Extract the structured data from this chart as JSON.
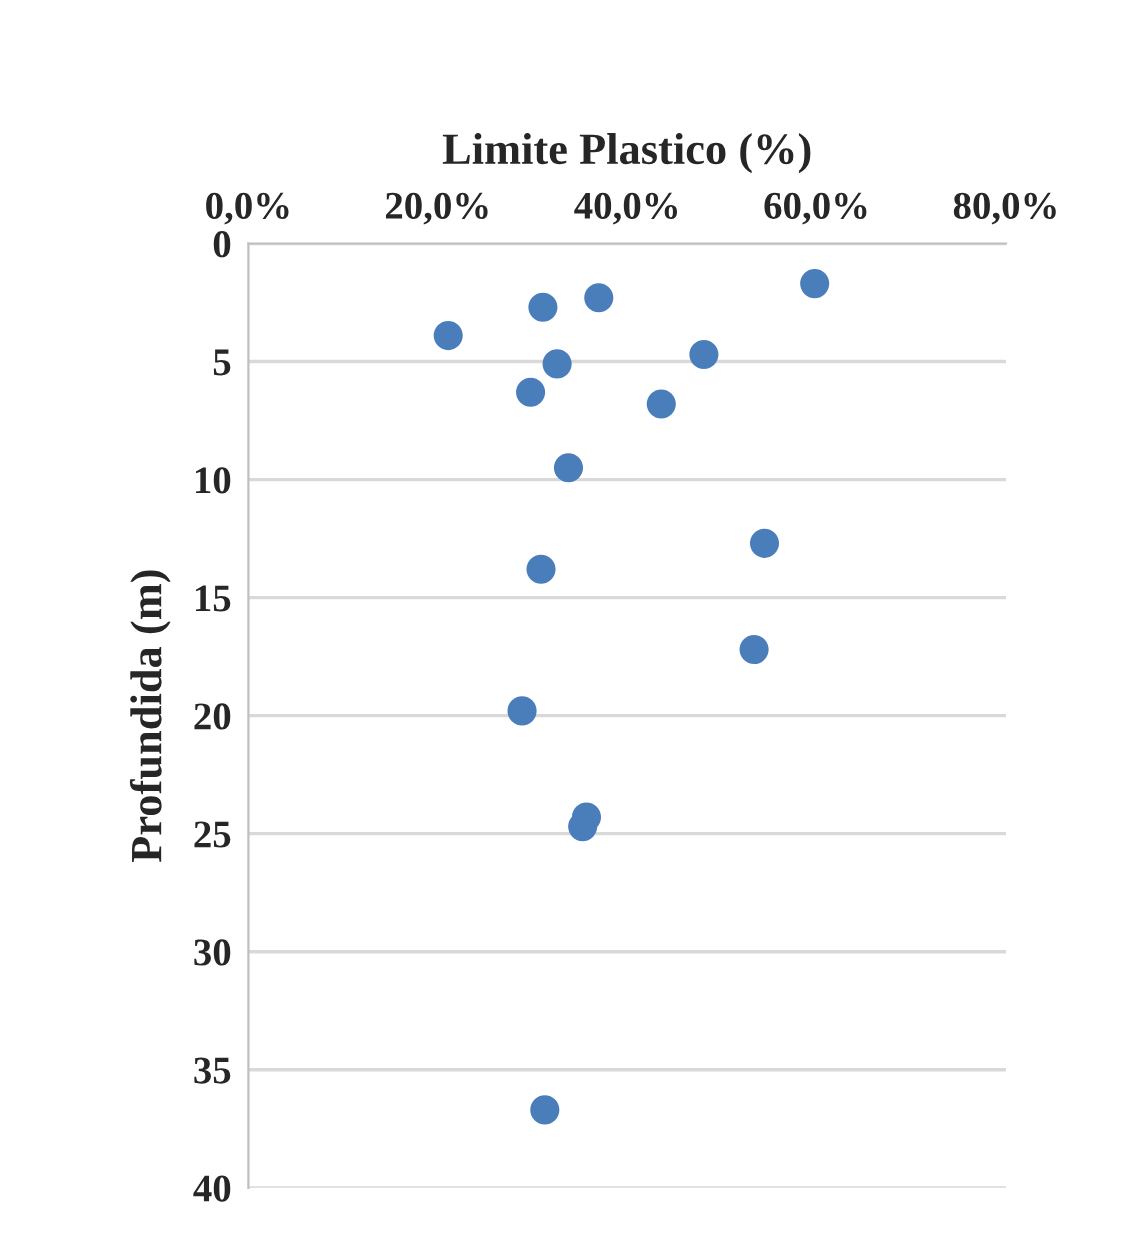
{
  "chart_data": {
    "type": "scatter",
    "xlabel": "Limite Plastico (%)",
    "ylabel": "Profundida (m)",
    "x": [
      59.8,
      37.0,
      31.1,
      21.1,
      32.6,
      48.1,
      29.8,
      43.6,
      33.8,
      54.5,
      30.9,
      53.4,
      28.9,
      35.7,
      35.3,
      31.3
    ],
    "values": [
      1.7,
      2.3,
      2.7,
      3.9,
      5.1,
      4.7,
      6.3,
      6.8,
      9.5,
      12.7,
      13.8,
      17.2,
      19.8,
      24.3,
      24.7,
      36.7
    ],
    "color": "#4a7ebb",
    "marker": "circle",
    "xlim": [
      0,
      80
    ],
    "xticks": [
      {
        "value": 0,
        "label": "0,0%"
      },
      {
        "value": 20,
        "label": "20,0%"
      },
      {
        "value": 40,
        "label": "40,0%"
      },
      {
        "value": 60,
        "label": "60,0%"
      },
      {
        "value": 80,
        "label": "80,0%"
      }
    ],
    "ylim": [
      40,
      0
    ],
    "yticks": [
      0,
      5,
      10,
      15,
      20,
      25,
      30,
      35,
      40
    ],
    "grid": "y"
  }
}
